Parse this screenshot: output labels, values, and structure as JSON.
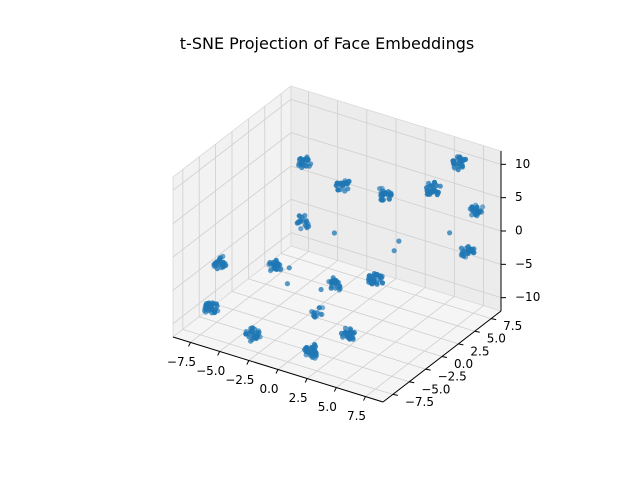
{
  "chart_data": {
    "type": "scatter",
    "projection": "3d",
    "title": "t-SNE Projection of Face Embeddings",
    "xlabel": "",
    "ylabel": "",
    "zlabel": "",
    "xlim": [
      -9,
      9
    ],
    "ylim": [
      -9,
      9
    ],
    "zlim": [
      -12,
      12
    ],
    "x_ticks": [
      "−7.5",
      "−5.0",
      "−2.5",
      "0.0",
      "2.5",
      "5.0",
      "7.5"
    ],
    "y_ticks": [
      "−7.5",
      "−5.0",
      "−2.5",
      "0.0",
      "2.5",
      "5.0",
      "7.5"
    ],
    "z_ticks": [
      "−10",
      "−5",
      "0",
      "5",
      "10"
    ],
    "grid": true,
    "marker_color": "#1f77b4",
    "clusters": [
      {
        "x": -7.2,
        "y": -6.5,
        "z": -8.5,
        "n": 30
      },
      {
        "x": -3.0,
        "y": -7.5,
        "z": -9.5,
        "n": 28
      },
      {
        "x": 2.2,
        "y": -7.8,
        "z": -9.0,
        "n": 30
      },
      {
        "x": 4.0,
        "y": -5.5,
        "z": -7.0,
        "n": 30
      },
      {
        "x": -7.5,
        "y": -4.5,
        "z": -3.5,
        "n": 24
      },
      {
        "x": -3.5,
        "y": -3.2,
        "z": -2.8,
        "n": 22
      },
      {
        "x": 1.0,
        "y": -2.0,
        "z": -4.0,
        "n": 22
      },
      {
        "x": 3.0,
        "y": 0.5,
        "z": -4.0,
        "n": 28
      },
      {
        "x": -4.0,
        "y": 2.0,
        "z": 8.5,
        "n": 22
      },
      {
        "x": -0.5,
        "y": 1.8,
        "z": 7.2,
        "n": 22
      },
      {
        "x": -3.5,
        "y": 1.0,
        "z": 0.5,
        "n": 18
      },
      {
        "x": 2.0,
        "y": 3.8,
        "z": 5.6,
        "n": 26
      },
      {
        "x": 4.2,
        "y": 7.2,
        "z": 5.0,
        "n": 28
      },
      {
        "x": 7.0,
        "y": 7.5,
        "z": -3.0,
        "n": 24
      },
      {
        "x": 5.5,
        "y": 8.8,
        "z": 8.6,
        "n": 26
      },
      {
        "x": 8.0,
        "y": 7.0,
        "z": 4.2,
        "n": 24
      },
      {
        "x": 0.0,
        "y": -3.0,
        "z": -8.0,
        "n": 12
      }
    ],
    "outliers": [
      {
        "x": -4.2,
        "y": 0.2,
        "z": -6.0
      },
      {
        "x": -0.8,
        "y": -1.0,
        "z": -6.5
      },
      {
        "x": 2.5,
        "y": 5.0,
        "z": -2.0
      },
      {
        "x": 6.0,
        "y": 6.5,
        "z": 0.0
      },
      {
        "x": -2.0,
        "y": -4.0,
        "z": -4.0
      },
      {
        "x": 3.5,
        "y": 2.5,
        "z": -1.0
      },
      {
        "x": -0.5,
        "y": 0.5,
        "z": 1.0
      }
    ]
  }
}
